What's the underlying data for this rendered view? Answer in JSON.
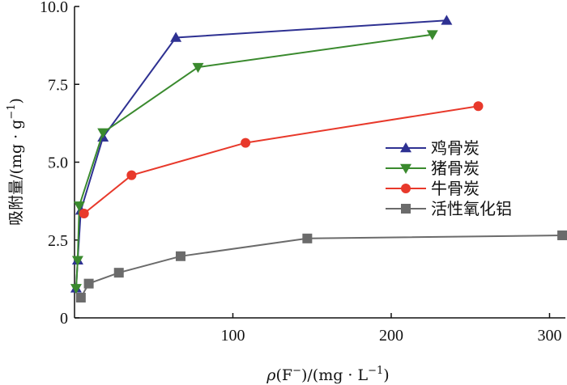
{
  "chart_data": {
    "type": "line",
    "title": "",
    "xlabel": {
      "rho": "ρ",
      "open": "(F",
      "sup1": "−",
      "close": ")/(mg · L",
      "sup2": "−1",
      "end": ")"
    },
    "ylabel": {
      "main": "吸附量/(mg · g",
      "sup": "−1",
      "end": ")"
    },
    "xlim": [
      0,
      310
    ],
    "ylim": [
      0,
      10
    ],
    "xticks": [
      {
        "value": 100,
        "label": "100"
      },
      {
        "value": 200,
        "label": "200"
      },
      {
        "value": 300,
        "label": "300"
      }
    ],
    "yticks": [
      {
        "value": 0,
        "label": "0"
      },
      {
        "value": 2.5,
        "label": "2.5"
      },
      {
        "value": 5,
        "label": "5.0"
      },
      {
        "value": 7.5,
        "label": "7.5"
      },
      {
        "value": 10,
        "label": "10.0"
      }
    ],
    "grid": false,
    "legend_position": "right-center",
    "series": [
      {
        "name": "鸡骨炭",
        "marker": "triangle-up",
        "color": "#2e3192",
        "x": [
          1,
          2,
          4,
          18,
          64,
          235
        ],
        "y": [
          0.95,
          1.85,
          3.45,
          5.8,
          9.0,
          9.55
        ]
      },
      {
        "name": "猪骨炭",
        "marker": "triangle-down",
        "color": "#3a8a2e",
        "x": [
          1,
          2,
          3,
          18,
          78,
          226
        ],
        "y": [
          0.95,
          1.85,
          3.6,
          5.95,
          8.05,
          9.1
        ]
      },
      {
        "name": "牛骨炭",
        "marker": "circle",
        "color": "#e8392b",
        "x": [
          6,
          36,
          108,
          255
        ],
        "y": [
          3.35,
          4.58,
          5.62,
          6.8
        ]
      },
      {
        "name": "活性氧化铝",
        "marker": "square",
        "color": "#6b6b6b",
        "x": [
          4,
          9,
          28,
          67,
          147,
          308
        ],
        "y": [
          0.65,
          1.1,
          1.45,
          1.98,
          2.55,
          2.65
        ]
      }
    ]
  }
}
